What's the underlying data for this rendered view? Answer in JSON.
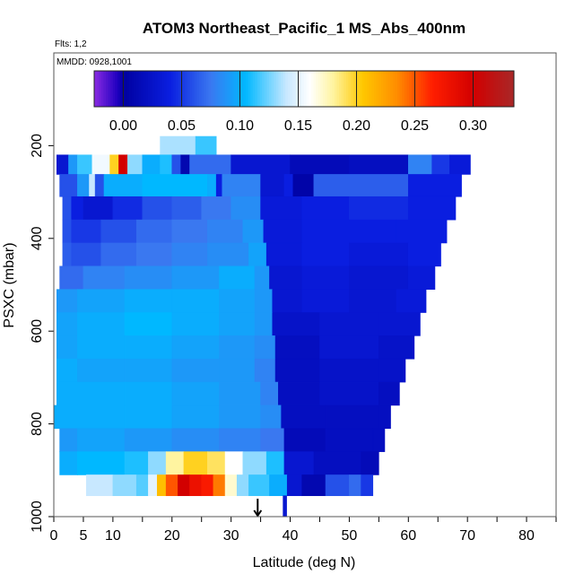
{
  "chart_data": {
    "type": "heatmap",
    "title": "ATOM3 Northeast_Pacific_1 MS_Abs_400nm",
    "flights_label": "Flts: 1,2",
    "dates_label": "MMDD: 0928,1001",
    "xlabel": "Latitude (deg N)",
    "ylabel": "PSXC (mbar)",
    "xlim": [
      0,
      85
    ],
    "ylim": [
      1000,
      0
    ],
    "x_ticks": [
      0,
      5,
      10,
      20,
      30,
      40,
      50,
      60,
      70,
      80
    ],
    "x_minor_ticks": [
      15,
      25,
      35,
      45,
      55,
      65,
      75,
      85
    ],
    "y_ticks": [
      200,
      400,
      600,
      800,
      1000
    ],
    "colorbar": {
      "min": -0.025,
      "max": 0.335,
      "ticks": [
        0.0,
        0.05,
        0.1,
        0.15,
        0.2,
        0.25,
        0.3
      ],
      "tick_labels": [
        "0.00",
        "0.05",
        "0.10",
        "0.15",
        "0.20",
        "0.25",
        "0.30"
      ],
      "stops": [
        {
          "v": -0.025,
          "c": "#8a2be2"
        },
        {
          "v": -0.005,
          "c": "#2000c0"
        },
        {
          "v": 0.0,
          "c": "#0000a0"
        },
        {
          "v": 0.04,
          "c": "#0a1ee0"
        },
        {
          "v": 0.075,
          "c": "#3a78f0"
        },
        {
          "v": 0.105,
          "c": "#00b8ff"
        },
        {
          "v": 0.14,
          "c": "#c8e8ff"
        },
        {
          "v": 0.16,
          "c": "#ffffff"
        },
        {
          "v": 0.18,
          "c": "#fff4a0"
        },
        {
          "v": 0.205,
          "c": "#ffc800"
        },
        {
          "v": 0.235,
          "c": "#ff8c00"
        },
        {
          "v": 0.265,
          "c": "#ff1e00"
        },
        {
          "v": 0.3,
          "c": "#d20000"
        },
        {
          "v": 0.335,
          "c": "#a82828"
        }
      ]
    },
    "arrow_latitude": 34.5,
    "levels": [
      {
        "p_top": 180,
        "p_bot": 220,
        "lat_min": 18,
        "lat_max": 27.5,
        "cells": [
          [
            18,
            0.135
          ],
          [
            24,
            0.115
          ]
        ]
      },
      {
        "p_top": 220,
        "p_bot": 262,
        "lat_min": 0.5,
        "lat_max": 70.5,
        "cells": [
          [
            0.5,
            0.03
          ],
          [
            2.5,
            0.09
          ],
          [
            4,
            0.115
          ],
          [
            6.5,
            0.155
          ],
          [
            9.5,
            0.2
          ],
          [
            11,
            0.3
          ],
          [
            12.5,
            0.13
          ],
          [
            15,
            0.1
          ],
          [
            18,
            0.11
          ],
          [
            20,
            0.06
          ],
          [
            21.5,
            0.01
          ],
          [
            23,
            0.07
          ],
          [
            30,
            0.03
          ],
          [
            40,
            0.015
          ],
          [
            50,
            0.02
          ],
          [
            60,
            0.08
          ],
          [
            64,
            0.05
          ],
          [
            67,
            0.035
          ]
        ]
      },
      {
        "p_top": 262,
        "p_bot": 310,
        "lat_min": 1,
        "lat_max": 69,
        "cells": [
          [
            1,
            0.06
          ],
          [
            4,
            0.09
          ],
          [
            6,
            0.14
          ],
          [
            7,
            0.06
          ],
          [
            8.5,
            0.1
          ],
          [
            15,
            0.105
          ],
          [
            26,
            0.1
          ],
          [
            27.5,
            0.04
          ],
          [
            28.5,
            0.08
          ],
          [
            35,
            0.03
          ],
          [
            39,
            0.04
          ],
          [
            40.5,
            0.005
          ],
          [
            44,
            0.065
          ],
          [
            60,
            0.04
          ]
        ]
      },
      {
        "p_top": 310,
        "p_bot": 360,
        "lat_min": 1.5,
        "lat_max": 68,
        "cells": [
          [
            1.5,
            0.06
          ],
          [
            3,
            0.04
          ],
          [
            5,
            0.03
          ],
          [
            10,
            0.045
          ],
          [
            15,
            0.06
          ],
          [
            20,
            0.065
          ],
          [
            25,
            0.075
          ],
          [
            30,
            0.085
          ],
          [
            35,
            0.035
          ],
          [
            42,
            0.04
          ],
          [
            50,
            0.045
          ],
          [
            60,
            0.04
          ]
        ]
      },
      {
        "p_top": 360,
        "p_bot": 410,
        "lat_min": 1.5,
        "lat_max": 66.5,
        "cells": [
          [
            1.5,
            0.06
          ],
          [
            3,
            0.05
          ],
          [
            8,
            0.06
          ],
          [
            14,
            0.07
          ],
          [
            20,
            0.075
          ],
          [
            26,
            0.08
          ],
          [
            32,
            0.09
          ],
          [
            35.5,
            0.035
          ],
          [
            42,
            0.04
          ],
          [
            50,
            0.04
          ],
          [
            58,
            0.04
          ]
        ]
      },
      {
        "p_top": 410,
        "p_bot": 460,
        "lat_min": 1.5,
        "lat_max": 65.5,
        "cells": [
          [
            1.5,
            0.065
          ],
          [
            3,
            0.06
          ],
          [
            8,
            0.07
          ],
          [
            14,
            0.075
          ],
          [
            20,
            0.08
          ],
          [
            26,
            0.085
          ],
          [
            33,
            0.095
          ],
          [
            36,
            0.035
          ],
          [
            42,
            0.04
          ],
          [
            50,
            0.035
          ],
          [
            60,
            0.04
          ]
        ]
      },
      {
        "p_top": 460,
        "p_bot": 510,
        "lat_min": 1,
        "lat_max": 64.5,
        "cells": [
          [
            1,
            0.07
          ],
          [
            5,
            0.08
          ],
          [
            12,
            0.085
          ],
          [
            20,
            0.09
          ],
          [
            28,
            0.1
          ],
          [
            34,
            0.09
          ],
          [
            36.5,
            0.03
          ],
          [
            42,
            0.035
          ],
          [
            50,
            0.03
          ],
          [
            60,
            0.035
          ]
        ]
      },
      {
        "p_top": 510,
        "p_bot": 560,
        "lat_min": 0.5,
        "lat_max": 63,
        "cells": [
          [
            0.5,
            0.09
          ],
          [
            4,
            0.095
          ],
          [
            12,
            0.1
          ],
          [
            20,
            0.1
          ],
          [
            28,
            0.095
          ],
          [
            34,
            0.09
          ],
          [
            37,
            0.03
          ],
          [
            42,
            0.035
          ],
          [
            50,
            0.03
          ],
          [
            58,
            0.035
          ]
        ]
      },
      {
        "p_top": 560,
        "p_bot": 610,
        "lat_min": 0.5,
        "lat_max": 62,
        "cells": [
          [
            0.5,
            0.095
          ],
          [
            4,
            0.1
          ],
          [
            12,
            0.105
          ],
          [
            20,
            0.1
          ],
          [
            28,
            0.095
          ],
          [
            34,
            0.09
          ],
          [
            37,
            0.025
          ],
          [
            45,
            0.03
          ],
          [
            55,
            0.03
          ]
        ]
      },
      {
        "p_top": 610,
        "p_bot": 660,
        "lat_min": 0.5,
        "lat_max": 61,
        "cells": [
          [
            0.5,
            0.095
          ],
          [
            4,
            0.1
          ],
          [
            12,
            0.1
          ],
          [
            20,
            0.095
          ],
          [
            28,
            0.09
          ],
          [
            34,
            0.085
          ],
          [
            37.5,
            0.02
          ],
          [
            45,
            0.03
          ],
          [
            55,
            0.025
          ]
        ]
      },
      {
        "p_top": 660,
        "p_bot": 710,
        "lat_min": 0.5,
        "lat_max": 59.5,
        "cells": [
          [
            0.5,
            0.1
          ],
          [
            4,
            0.095
          ],
          [
            12,
            0.095
          ],
          [
            20,
            0.09
          ],
          [
            28,
            0.09
          ],
          [
            34,
            0.08
          ],
          [
            37.5,
            0.02
          ],
          [
            45,
            0.025
          ],
          [
            55,
            0.025
          ]
        ]
      },
      {
        "p_top": 710,
        "p_bot": 760,
        "lat_min": 0.5,
        "lat_max": 58.5,
        "cells": [
          [
            0.5,
            0.1
          ],
          [
            4,
            0.1
          ],
          [
            12,
            0.1
          ],
          [
            20,
            0.095
          ],
          [
            28,
            0.09
          ],
          [
            35,
            0.08
          ],
          [
            38,
            0.02
          ],
          [
            45,
            0.025
          ],
          [
            55,
            0.02
          ]
        ]
      },
      {
        "p_top": 760,
        "p_bot": 810,
        "lat_min": 0,
        "lat_max": 57,
        "cells": [
          [
            0,
            0.1
          ],
          [
            4,
            0.1
          ],
          [
            12,
            0.1
          ],
          [
            20,
            0.095
          ],
          [
            28,
            0.09
          ],
          [
            35,
            0.085
          ],
          [
            38.5,
            0.02
          ],
          [
            46,
            0.02
          ],
          [
            55,
            0.02
          ]
        ]
      },
      {
        "p_top": 810,
        "p_bot": 860,
        "lat_min": 1,
        "lat_max": 56,
        "cells": [
          [
            1,
            0.09
          ],
          [
            4,
            0.095
          ],
          [
            12,
            0.09
          ],
          [
            20,
            0.085
          ],
          [
            28,
            0.08
          ],
          [
            35,
            0.075
          ],
          [
            39,
            0.015
          ],
          [
            46,
            0.02
          ],
          [
            54,
            0.02
          ]
        ]
      },
      {
        "p_top": 860,
        "p_bot": 910,
        "lat_min": 1,
        "lat_max": 55,
        "cells": [
          [
            1,
            0.1
          ],
          [
            4,
            0.105
          ],
          [
            12,
            0.11
          ],
          [
            16,
            0.13
          ],
          [
            19,
            0.18
          ],
          [
            22,
            0.2
          ],
          [
            26,
            0.19
          ],
          [
            29,
            0.16
          ],
          [
            32,
            0.13
          ],
          [
            36,
            0.11
          ],
          [
            39,
            0.03
          ],
          [
            44,
            0.02
          ],
          [
            52,
            0.015
          ]
        ]
      },
      {
        "p_top": 910,
        "p_bot": 955,
        "lat_min": 5.5,
        "lat_max": 54,
        "cells": [
          [
            5.5,
            0.14
          ],
          [
            10,
            0.13
          ],
          [
            14,
            0.12
          ],
          [
            16,
            0.15
          ],
          [
            17.5,
            0.21
          ],
          [
            19,
            0.25
          ],
          [
            21,
            0.3
          ],
          [
            23,
            0.28
          ],
          [
            25,
            0.27
          ],
          [
            27,
            0.24
          ],
          [
            29,
            0.17
          ],
          [
            31,
            0.13
          ],
          [
            33,
            0.115
          ],
          [
            36.5,
            0.1
          ],
          [
            39.5,
            0.03
          ],
          [
            42,
            0.01
          ],
          [
            46,
            0.06
          ],
          [
            50,
            0.07
          ],
          [
            52,
            0.05
          ]
        ]
      },
      {
        "p_top": 955,
        "p_bot": 1000,
        "lat_min": 38.8,
        "lat_max": 39.4,
        "cells": [
          [
            38.8,
            0.03
          ]
        ]
      }
    ]
  }
}
